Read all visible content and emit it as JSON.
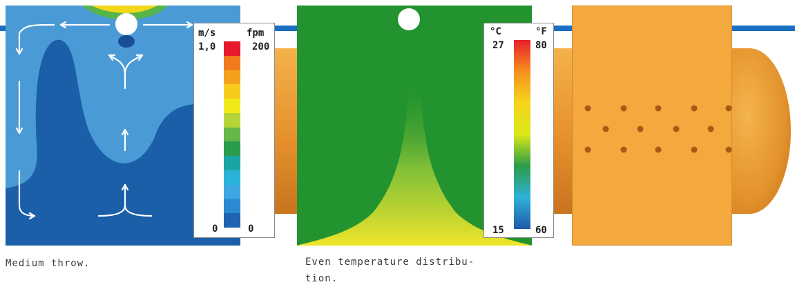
{
  "panels": {
    "velocity": {
      "caption": "Medium throw.",
      "legend": {
        "unit_left": "m/s",
        "unit_right": "fpm",
        "max_left": "1,0",
        "max_right": "200",
        "min_left": "0",
        "min_right": "0"
      }
    },
    "temperature": {
      "caption_line1": "Even temperature distribu-",
      "caption_line2": "tion.",
      "legend": {
        "unit_left": "°C",
        "unit_right": "°F",
        "max_left": "27",
        "max_right": "80",
        "min_left": "15",
        "min_right": "60"
      }
    }
  },
  "colors": {
    "velocity_scale": [
      "#e8192c",
      "#f07a1c",
      "#f4a21e",
      "#f8cc1c",
      "#f2ea18",
      "#b6d43a",
      "#66b648",
      "#2a9c4c",
      "#1aa4a4",
      "#2ab2d8",
      "#3ea6e0",
      "#2c8ad2",
      "#1e64b0"
    ],
    "temperature_scale": [
      "#e8202a",
      "#f5901e",
      "#f6d41a",
      "#d9e818",
      "#2a9c48",
      "#2fb0d8",
      "#1c5aa8"
    ],
    "duct": "#f0a03a",
    "pipe": "#1b6fc0",
    "velocity_dark": "#1a5fa8",
    "velocity_light": "#4a9ad6",
    "temperature_field": "#22932e",
    "plume": "#e8e22a"
  }
}
